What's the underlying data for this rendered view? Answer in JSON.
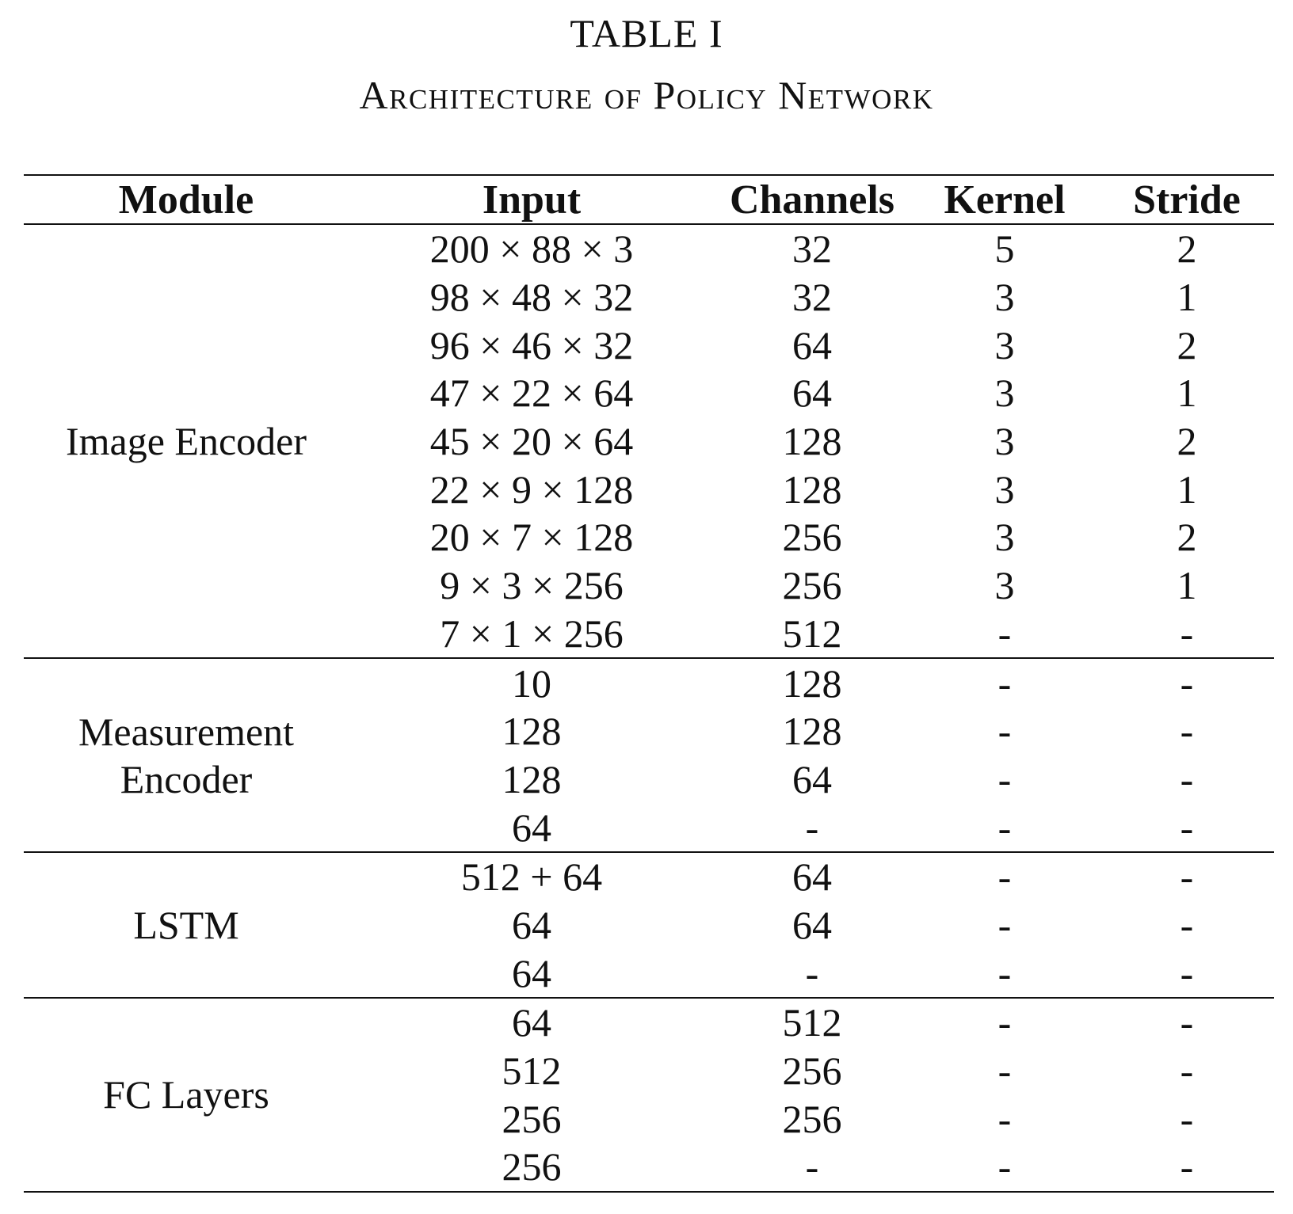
{
  "table": {
    "number": "TABLE I",
    "caption": "Architecture of Policy Network",
    "columns": [
      "Module",
      "Input",
      "Channels",
      "Kernel",
      "Stride"
    ],
    "groups": [
      {
        "module": "Image Encoder",
        "rows": [
          [
            "200 × 88 × 3",
            "32",
            "5",
            "2"
          ],
          [
            "98 × 48 × 32",
            "32",
            "3",
            "1"
          ],
          [
            "96 × 46 × 32",
            "64",
            "3",
            "2"
          ],
          [
            "47 × 22 × 64",
            "64",
            "3",
            "1"
          ],
          [
            "45 × 20 × 64",
            "128",
            "3",
            "2"
          ],
          [
            "22 × 9 × 128",
            "128",
            "3",
            "1"
          ],
          [
            "20 × 7 × 128",
            "256",
            "3",
            "2"
          ],
          [
            "9 × 3 × 256",
            "256",
            "3",
            "1"
          ],
          [
            "7 × 1 × 256",
            "512",
            "-",
            "-"
          ]
        ]
      },
      {
        "module": "Measurement Encoder",
        "rows": [
          [
            "10",
            "128",
            "-",
            "-"
          ],
          [
            "128",
            "128",
            "-",
            "-"
          ],
          [
            "128",
            "64",
            "-",
            "-"
          ],
          [
            "64",
            "-",
            "-",
            "-"
          ]
        ]
      },
      {
        "module": "LSTM",
        "rows": [
          [
            "512 + 64",
            "64",
            "-",
            "-"
          ],
          [
            "64",
            "64",
            "-",
            "-"
          ],
          [
            "64",
            "-",
            "-",
            "-"
          ]
        ]
      },
      {
        "module": "FC Layers",
        "rows": [
          [
            "64",
            "512",
            "-",
            "-"
          ],
          [
            "512",
            "256",
            "-",
            "-"
          ],
          [
            "256",
            "256",
            "-",
            "-"
          ],
          [
            "256",
            "-",
            "-",
            "-"
          ]
        ]
      }
    ]
  }
}
